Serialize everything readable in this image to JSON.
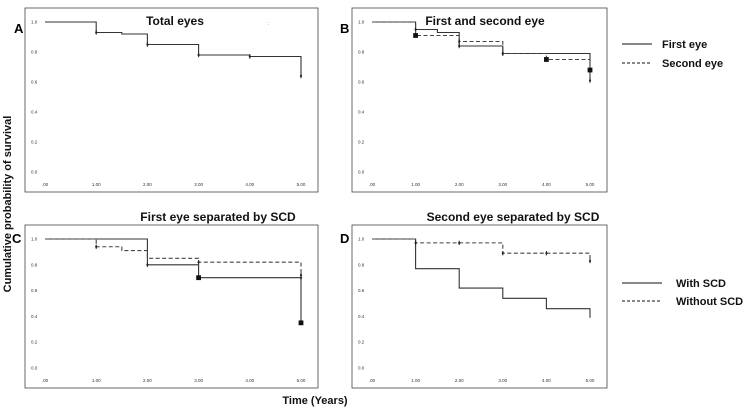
{
  "figure": {
    "ylabel": "Cumulative probability of survival",
    "xlabel": "Time (Years)"
  },
  "legends": {
    "eye": {
      "solid": "First eye",
      "dashed": "Second eye"
    },
    "scd": {
      "solid": "With SCD",
      "dashed": "Without SCD"
    }
  },
  "chart_data": [
    {
      "type": "line",
      "letter": "A",
      "title": "Total eyes",
      "corner_mark": ":",
      "x_ticks": [
        ".00",
        "1.00",
        "2.00",
        "3.00",
        "4.00",
        "5.00"
      ],
      "y_ticks": [
        "0.0",
        "0.2",
        "0.4",
        "0.6",
        "0.8",
        "1.0"
      ],
      "xlim": [
        0,
        5
      ],
      "ylim": [
        0,
        1
      ],
      "series": [
        {
          "name": "Total eyes",
          "style": "solid",
          "steps": [
            [
              0,
              1.0
            ],
            [
              1.0,
              0.93
            ],
            [
              1.5,
              0.92
            ],
            [
              2.0,
              0.85
            ],
            [
              3.0,
              0.78
            ],
            [
              4.0,
              0.77
            ],
            [
              5.0,
              0.64
            ]
          ],
          "censors": [
            [
              1.0,
              0.93
            ],
            [
              2.0,
              0.85
            ],
            [
              3.0,
              0.78
            ],
            [
              4.0,
              0.77
            ],
            [
              5.0,
              0.64
            ]
          ],
          "filled": []
        }
      ]
    },
    {
      "type": "line",
      "letter": "B",
      "title": "First and second  eye",
      "corner_mark": "",
      "x_ticks": [
        ".00",
        "1.00",
        "2.00",
        "3.00",
        "4.00",
        "5.00"
      ],
      "y_ticks": [
        "0.0",
        "0.2",
        "0.4",
        "0.6",
        "0.8",
        "1.0"
      ],
      "xlim": [
        0,
        5
      ],
      "ylim": [
        0,
        1
      ],
      "series": [
        {
          "name": "First eye",
          "style": "solid",
          "steps": [
            [
              0,
              1.0
            ],
            [
              1.0,
              0.95
            ],
            [
              1.5,
              0.93
            ],
            [
              2.0,
              0.84
            ],
            [
              3.0,
              0.79
            ],
            [
              4.0,
              0.79
            ],
            [
              5.0,
              0.61
            ]
          ],
          "censors": [
            [
              1.0,
              0.95
            ],
            [
              2.0,
              0.84
            ],
            [
              3.0,
              0.79
            ],
            [
              5.0,
              0.61
            ]
          ],
          "filled": [
            [
              5.0,
              0.68
            ]
          ]
        },
        {
          "name": "Second eye",
          "style": "dashed",
          "steps": [
            [
              0,
              1.0
            ],
            [
              1.0,
              0.91
            ],
            [
              2.0,
              0.87
            ],
            [
              3.0,
              0.79
            ],
            [
              4.0,
              0.75
            ],
            [
              5.0,
              0.68
            ]
          ],
          "censors": [
            [
              2.0,
              0.87
            ],
            [
              3.0,
              0.79
            ]
          ],
          "filled": [
            [
              1.0,
              0.91
            ],
            [
              4.0,
              0.75
            ]
          ]
        }
      ]
    },
    {
      "type": "line",
      "letter": "C",
      "title": "First eye separated by SCD",
      "corner_mark": "",
      "x_ticks": [
        ".00",
        "1.00",
        "2.00",
        "3.00",
        "4.00",
        "5.00"
      ],
      "y_ticks": [
        "0.0",
        "0.2",
        "0.4",
        "0.6",
        "0.8",
        "1.0"
      ],
      "xlim": [
        0,
        5
      ],
      "ylim": [
        0,
        1
      ],
      "series": [
        {
          "name": "With SCD",
          "style": "solid",
          "steps": [
            [
              0,
              1.0
            ],
            [
              2.0,
              0.8
            ],
            [
              3.0,
              0.7
            ],
            [
              5.0,
              0.35
            ]
          ],
          "censors": [
            [
              2.0,
              0.8
            ],
            [
              5.0,
              0.7
            ]
          ],
          "filled": [
            [
              3.0,
              0.7
            ],
            [
              5.0,
              0.35
            ]
          ]
        },
        {
          "name": "Without SCD",
          "style": "dashed",
          "steps": [
            [
              0,
              1.0
            ],
            [
              1.0,
              0.94
            ],
            [
              1.5,
              0.91
            ],
            [
              2.0,
              0.85
            ],
            [
              3.0,
              0.82
            ],
            [
              5.0,
              0.72
            ]
          ],
          "censors": [
            [
              1.0,
              0.94
            ],
            [
              3.0,
              0.82
            ],
            [
              5.0,
              0.72
            ]
          ],
          "filled": []
        }
      ]
    },
    {
      "type": "line",
      "letter": "D",
      "title": "Second eye separated by SCD",
      "corner_mark": "",
      "x_ticks": [
        ".00",
        "1.00",
        "2.00",
        "3.00",
        "4.00",
        "5.00"
      ],
      "y_ticks": [
        "0.0",
        "0.2",
        "0.4",
        "0.6",
        "0.8",
        "1.0"
      ],
      "xlim": [
        0,
        5
      ],
      "ylim": [
        0,
        1
      ],
      "series": [
        {
          "name": "With SCD",
          "style": "solid",
          "steps": [
            [
              0,
              1.0
            ],
            [
              1.0,
              0.77
            ],
            [
              2.0,
              0.62
            ],
            [
              3.0,
              0.54
            ],
            [
              4.0,
              0.46
            ],
            [
              5.0,
              0.39
            ]
          ],
          "censors": [],
          "filled": []
        },
        {
          "name": "Without SCD",
          "style": "dashed",
          "steps": [
            [
              0,
              1.0
            ],
            [
              1.0,
              0.97
            ],
            [
              3.0,
              0.89
            ],
            [
              5.0,
              0.83
            ]
          ],
          "censors": [
            [
              1.0,
              0.97
            ],
            [
              2.0,
              0.97
            ],
            [
              3.0,
              0.89
            ],
            [
              4.0,
              0.89
            ],
            [
              5.0,
              0.83
            ]
          ],
          "filled": []
        }
      ]
    }
  ]
}
